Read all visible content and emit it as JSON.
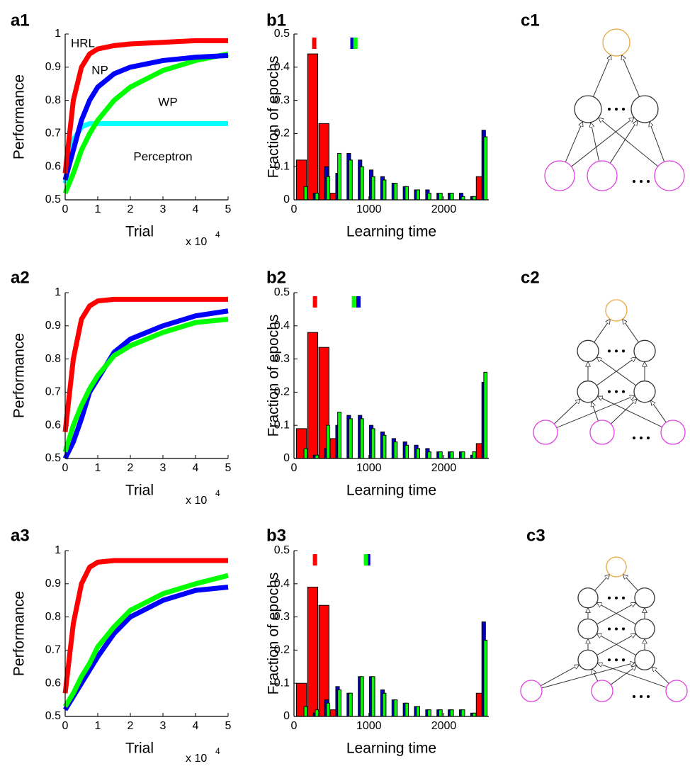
{
  "chart_data": [
    {
      "panel": "a1",
      "type": "line",
      "ylabel": "Performance",
      "xlabel": "Trial",
      "x_scale_text": "x 10",
      "x_scale_exponent": "4",
      "xlim": [
        0,
        5
      ],
      "xticks": [
        0,
        1,
        2,
        3,
        4,
        5
      ],
      "ylim": [
        0.5,
        1
      ],
      "yticks": [
        0.5,
        0.6,
        0.7,
        0.8,
        0.9,
        1
      ],
      "x": [
        0,
        0.25,
        0.5,
        0.75,
        1,
        1.5,
        2,
        3,
        4,
        5
      ],
      "series": [
        {
          "name": "Perceptron",
          "color": "#00ffff",
          "values": [
            0.55,
            0.68,
            0.72,
            0.73,
            0.73,
            0.73,
            0.73,
            0.73,
            0.73,
            0.73
          ]
        },
        {
          "name": "WP",
          "color": "#00ff00",
          "values": [
            0.52,
            0.58,
            0.65,
            0.7,
            0.74,
            0.8,
            0.84,
            0.89,
            0.92,
            0.94
          ]
        },
        {
          "name": "NP",
          "color": "#0000ff",
          "values": [
            0.56,
            0.65,
            0.74,
            0.8,
            0.84,
            0.88,
            0.9,
            0.92,
            0.93,
            0.935
          ]
        },
        {
          "name": "HRL",
          "color": "#ff0000",
          "values": [
            0.58,
            0.8,
            0.9,
            0.94,
            0.955,
            0.965,
            0.97,
            0.975,
            0.98,
            0.98
          ]
        }
      ]
    },
    {
      "panel": "a2",
      "type": "line",
      "ylabel": "Performance",
      "xlabel": "Trial",
      "x_scale_text": "x 10",
      "x_scale_exponent": "4",
      "xlim": [
        0,
        5
      ],
      "xticks": [
        0,
        1,
        2,
        3,
        4,
        5
      ],
      "ylim": [
        0.5,
        1
      ],
      "yticks": [
        0.5,
        0.6,
        0.7,
        0.8,
        0.9,
        1
      ],
      "x": [
        0,
        0.25,
        0.5,
        0.75,
        1,
        1.5,
        2,
        3,
        4,
        5
      ],
      "series": [
        {
          "color": "#0000ff",
          "values": [
            0.5,
            0.55,
            0.62,
            0.7,
            0.74,
            0.82,
            0.86,
            0.9,
            0.93,
            0.945
          ]
        },
        {
          "color": "#00ff00",
          "values": [
            0.52,
            0.6,
            0.66,
            0.71,
            0.75,
            0.81,
            0.84,
            0.88,
            0.91,
            0.92
          ]
        },
        {
          "color": "#ff0000",
          "values": [
            0.58,
            0.8,
            0.92,
            0.96,
            0.975,
            0.98,
            0.98,
            0.98,
            0.98,
            0.98
          ]
        }
      ]
    },
    {
      "panel": "a3",
      "type": "line",
      "ylabel": "Performance",
      "xlabel": "Trial",
      "x_scale_text": "x 10",
      "x_scale_exponent": "4",
      "xlim": [
        0,
        5
      ],
      "xticks": [
        0,
        1,
        2,
        3,
        4,
        5
      ],
      "ylim": [
        0.5,
        1
      ],
      "yticks": [
        0.5,
        0.6,
        0.7,
        0.8,
        0.9,
        1
      ],
      "x": [
        0,
        0.25,
        0.5,
        0.75,
        1,
        1.5,
        2,
        3,
        4,
        5
      ],
      "series": [
        {
          "color": "#0000ff",
          "values": [
            0.52,
            0.56,
            0.6,
            0.64,
            0.68,
            0.75,
            0.8,
            0.85,
            0.88,
            0.89
          ]
        },
        {
          "color": "#00ff00",
          "values": [
            0.53,
            0.57,
            0.62,
            0.66,
            0.71,
            0.77,
            0.82,
            0.87,
            0.9,
            0.925
          ]
        },
        {
          "color": "#ff0000",
          "values": [
            0.57,
            0.78,
            0.9,
            0.95,
            0.965,
            0.97,
            0.97,
            0.97,
            0.97,
            0.97
          ]
        }
      ]
    },
    {
      "panel": "b1",
      "type": "bar",
      "ylabel": "Fraction of epochs",
      "xlabel": "Learning time",
      "xlim": [
        0,
        2600
      ],
      "xticks": [
        0,
        1000,
        2000
      ],
      "ylim": [
        0,
        0.5
      ],
      "yticks": [
        0,
        0.1,
        0.2,
        0.3,
        0.4,
        0.5
      ],
      "x": [
        100,
        250,
        400,
        550,
        700,
        850,
        1000,
        1150,
        1300,
        1450,
        1600,
        1750,
        1900,
        2050,
        2200,
        2350,
        2500
      ],
      "series": [
        {
          "color": "#ff0000",
          "mean": 270,
          "values": [
            0.12,
            0.44,
            0.23,
            0.02,
            0,
            0,
            0,
            0,
            0,
            0,
            0,
            0,
            0,
            0,
            0,
            0,
            0.07
          ]
        },
        {
          "color": "#0000cc",
          "mean": 780,
          "values": [
            0,
            0.02,
            0.1,
            0.08,
            0.14,
            0.12,
            0.09,
            0.07,
            0.05,
            0.04,
            0.03,
            0.03,
            0.02,
            0.02,
            0.02,
            0.01,
            0.21
          ]
        },
        {
          "color": "#00ff00",
          "mean": 820,
          "values": [
            0.04,
            0.02,
            0.07,
            0.14,
            0.12,
            0.1,
            0.07,
            0.06,
            0.05,
            0.04,
            0.03,
            0.02,
            0.02,
            0.02,
            0.01,
            0.01,
            0.19
          ]
        }
      ]
    },
    {
      "panel": "b2",
      "type": "bar",
      "ylabel": "Fraction of epochs",
      "xlabel": "Learning time",
      "xlim": [
        0,
        2600
      ],
      "xticks": [
        0,
        1000,
        2000
      ],
      "ylim": [
        0,
        0.5
      ],
      "yticks": [
        0,
        0.1,
        0.2,
        0.3,
        0.4,
        0.5
      ],
      "x": [
        100,
        250,
        400,
        550,
        700,
        850,
        1000,
        1150,
        1300,
        1450,
        1600,
        1750,
        1900,
        2050,
        2200,
        2350,
        2500
      ],
      "series": [
        {
          "color": "#ff0000",
          "mean": 280,
          "values": [
            0.09,
            0.38,
            0.335,
            0.06,
            0,
            0,
            0,
            0,
            0,
            0,
            0,
            0,
            0,
            0,
            0,
            0,
            0.045
          ]
        },
        {
          "color": "#0000cc",
          "mean": 860,
          "values": [
            0,
            0.01,
            0.03,
            0.1,
            0.13,
            0.13,
            0.1,
            0.08,
            0.06,
            0.05,
            0.04,
            0.03,
            0.02,
            0.02,
            0.02,
            0.01,
            0.23
          ]
        },
        {
          "color": "#00ff00",
          "mean": 800,
          "values": [
            0.03,
            0.01,
            0.1,
            0.14,
            0.12,
            0.12,
            0.09,
            0.07,
            0.05,
            0.04,
            0.03,
            0.02,
            0.02,
            0.02,
            0.02,
            0.02,
            0.26
          ]
        }
      ]
    },
    {
      "panel": "b3",
      "type": "bar",
      "ylabel": "Fraction of epochs",
      "xlabel": "Learning time",
      "xlim": [
        0,
        2600
      ],
      "xticks": [
        0,
        1000,
        2000
      ],
      "ylim": [
        0,
        0.5
      ],
      "yticks": [
        0,
        0.1,
        0.2,
        0.3,
        0.4,
        0.5
      ],
      "x": [
        100,
        250,
        400,
        550,
        700,
        850,
        1000,
        1150,
        1300,
        1450,
        1600,
        1750,
        1900,
        2050,
        2200,
        2350,
        2500
      ],
      "series": [
        {
          "color": "#ff0000",
          "mean": 280,
          "values": [
            0.1,
            0.39,
            0.335,
            0.02,
            0,
            0,
            0,
            0,
            0,
            0,
            0,
            0,
            0,
            0,
            0,
            0,
            0.07
          ]
        },
        {
          "color": "#0000cc",
          "mean": 990,
          "values": [
            0,
            0.01,
            0.05,
            0.09,
            0.07,
            0.12,
            0.12,
            0.08,
            0.05,
            0.04,
            0.03,
            0.02,
            0.02,
            0.02,
            0.02,
            0.01,
            0.285
          ]
        },
        {
          "color": "#00ff00",
          "mean": 960,
          "values": [
            0.03,
            0.02,
            0.04,
            0.08,
            0.07,
            0.12,
            0.12,
            0.07,
            0.05,
            0.04,
            0.03,
            0.02,
            0.02,
            0.02,
            0.02,
            0.01,
            0.23
          ]
        }
      ]
    }
  ],
  "diagrams": [
    {
      "panel": "c1"
    },
    {
      "panel": "c2"
    },
    {
      "panel": "c3"
    }
  ]
}
